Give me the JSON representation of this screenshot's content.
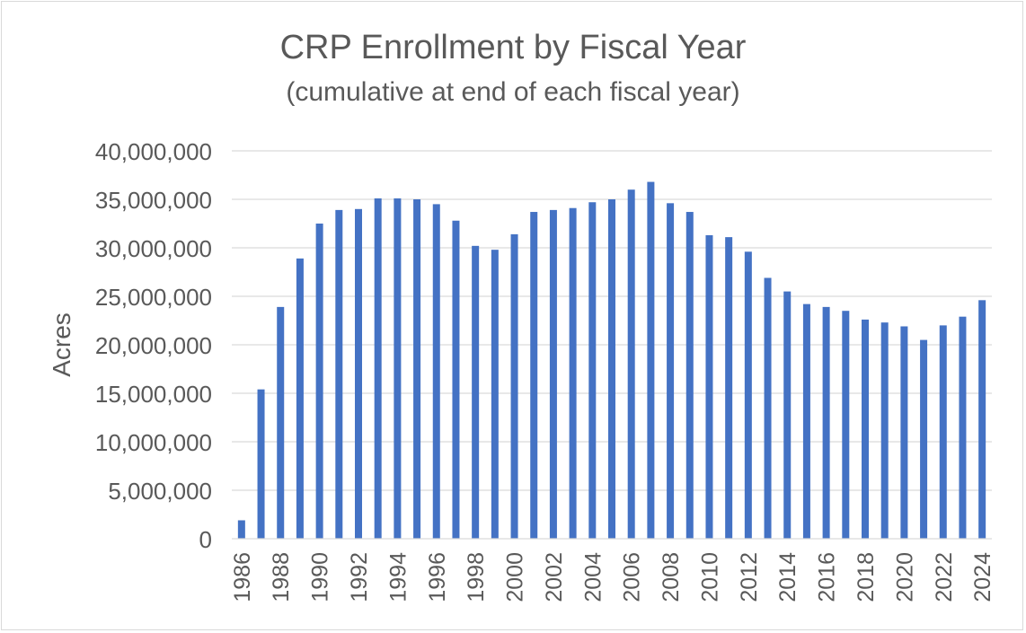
{
  "chart_data": {
    "type": "bar",
    "title": "CRP Enrollment by Fiscal Year",
    "subtitle": "(cumulative at end of each fiscal year)",
    "xlabel": "",
    "ylabel": "Acres",
    "ylim": [
      0,
      40000000
    ],
    "yticks": [
      0,
      5000000,
      10000000,
      15000000,
      20000000,
      25000000,
      30000000,
      35000000,
      40000000
    ],
    "ytick_labels": [
      "0",
      "5,000,000",
      "10,000,000",
      "15,000,000",
      "20,000,000",
      "25,000,000",
      "30,000,000",
      "35,000,000",
      "40,000,000"
    ],
    "grid": true,
    "bar_color": "#4472C4",
    "categories": [
      "1986",
      "1987",
      "1988",
      "1989",
      "1990",
      "1991",
      "1992",
      "1993",
      "1994",
      "1995",
      "1996",
      "1997",
      "1998",
      "1999",
      "2000",
      "2001",
      "2002",
      "2003",
      "2004",
      "2005",
      "2006",
      "2007",
      "2008",
      "2009",
      "2010",
      "2011",
      "2012",
      "2013",
      "2014",
      "2015",
      "2016",
      "2017",
      "2018",
      "2019",
      "2020",
      "2021",
      "2022",
      "2023",
      "2024"
    ],
    "xtick_labels": [
      "1986",
      "",
      "1988",
      "",
      "1990",
      "",
      "1992",
      "",
      "1994",
      "",
      "1996",
      "",
      "1998",
      "",
      "2000",
      "",
      "2002",
      "",
      "2004",
      "",
      "2006",
      "",
      "2008",
      "",
      "2010",
      "",
      "2012",
      "",
      "2014",
      "",
      "2016",
      "",
      "2018",
      "",
      "2020",
      "",
      "2022",
      "",
      "2024"
    ],
    "values": [
      1900000,
      15400000,
      23900000,
      28900000,
      32500000,
      33900000,
      34000000,
      35100000,
      35100000,
      35000000,
      34500000,
      32800000,
      30200000,
      29800000,
      31400000,
      33700000,
      33900000,
      34100000,
      34700000,
      35000000,
      36000000,
      36800000,
      34600000,
      33700000,
      31300000,
      31100000,
      29600000,
      26900000,
      25500000,
      24200000,
      23900000,
      23500000,
      22600000,
      22300000,
      21900000,
      20500000,
      22000000,
      22900000,
      24600000
    ]
  }
}
